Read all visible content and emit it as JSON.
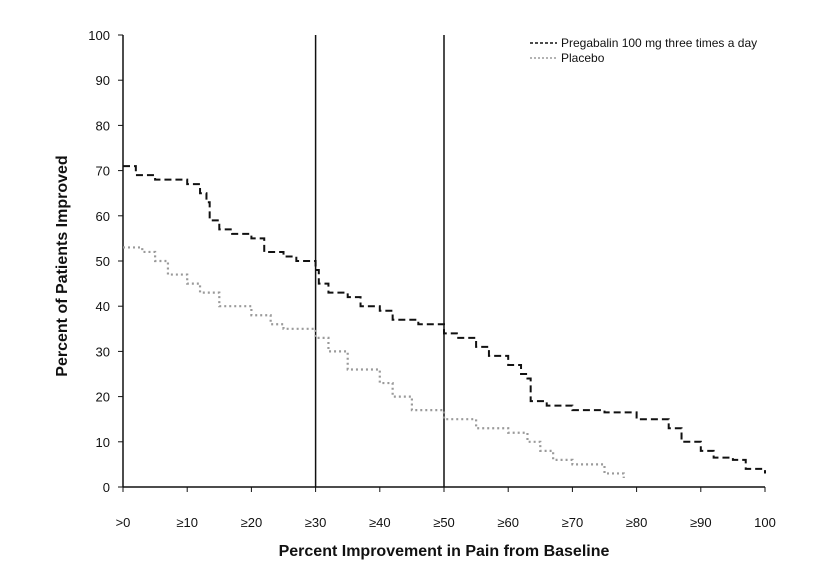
{
  "chart_data": {
    "type": "line",
    "title": "",
    "xlabel": "Percent Improvement in Pain from Baseline",
    "ylabel": "Percent of Patients Improved",
    "xlim": [
      0,
      100
    ],
    "ylim": [
      0,
      100
    ],
    "x_ticks": [
      0,
      10,
      20,
      30,
      40,
      50,
      60,
      70,
      80,
      90,
      100
    ],
    "x_tick_labels": [
      ">0",
      "≥10",
      "≥20",
      "≥30",
      "≥40",
      "≥50",
      "≥60",
      "≥70",
      "≥80",
      "≥90",
      "100"
    ],
    "y_ticks": [
      0,
      10,
      20,
      30,
      40,
      50,
      60,
      70,
      80,
      90,
      100
    ],
    "y_tick_labels": [
      "0",
      "10",
      "20",
      "30",
      "40",
      "50",
      "60",
      "70",
      "80",
      "90",
      "100"
    ],
    "reference_lines_x": [
      30,
      50
    ],
    "grid": false,
    "legend_position": "top-right",
    "series": [
      {
        "name": "Pregabalin 100 mg three times a day",
        "color": "#111111",
        "style": "dashed",
        "points": [
          [
            0,
            71
          ],
          [
            1,
            71
          ],
          [
            2,
            69
          ],
          [
            5,
            68
          ],
          [
            10,
            67
          ],
          [
            12,
            65
          ],
          [
            13,
            63
          ],
          [
            13.5,
            59
          ],
          [
            15,
            57
          ],
          [
            17,
            56
          ],
          [
            20,
            55
          ],
          [
            22,
            52
          ],
          [
            25,
            51
          ],
          [
            27,
            50
          ],
          [
            30,
            48
          ],
          [
            30.5,
            45
          ],
          [
            32,
            43
          ],
          [
            35,
            42
          ],
          [
            37,
            40
          ],
          [
            40,
            39
          ],
          [
            42,
            37
          ],
          [
            46,
            36
          ],
          [
            50,
            34
          ],
          [
            52,
            33
          ],
          [
            55,
            31
          ],
          [
            57,
            29
          ],
          [
            60,
            27
          ],
          [
            62,
            25
          ],
          [
            63,
            24
          ],
          [
            63.5,
            19
          ],
          [
            66,
            18
          ],
          [
            70,
            17
          ],
          [
            75,
            16.5
          ],
          [
            80,
            15
          ],
          [
            85,
            13
          ],
          [
            87,
            10
          ],
          [
            90,
            8
          ],
          [
            92,
            6.5
          ],
          [
            95,
            6
          ],
          [
            97,
            4
          ],
          [
            100,
            3
          ]
        ]
      },
      {
        "name": "Placebo",
        "color": "#9a9a9a",
        "style": "dotted",
        "points": [
          [
            0,
            53
          ],
          [
            3,
            52
          ],
          [
            5,
            50
          ],
          [
            7,
            47
          ],
          [
            10,
            45
          ],
          [
            12,
            43
          ],
          [
            15,
            40
          ],
          [
            20,
            38
          ],
          [
            23,
            36
          ],
          [
            25,
            35
          ],
          [
            30,
            33
          ],
          [
            32,
            30
          ],
          [
            35,
            26
          ],
          [
            40,
            23
          ],
          [
            42,
            20
          ],
          [
            45,
            17
          ],
          [
            50,
            15
          ],
          [
            55,
            13
          ],
          [
            60,
            12
          ],
          [
            63,
            10
          ],
          [
            65,
            8
          ],
          [
            67,
            6
          ],
          [
            70,
            5
          ],
          [
            75,
            3
          ],
          [
            78,
            2
          ]
        ]
      }
    ]
  }
}
